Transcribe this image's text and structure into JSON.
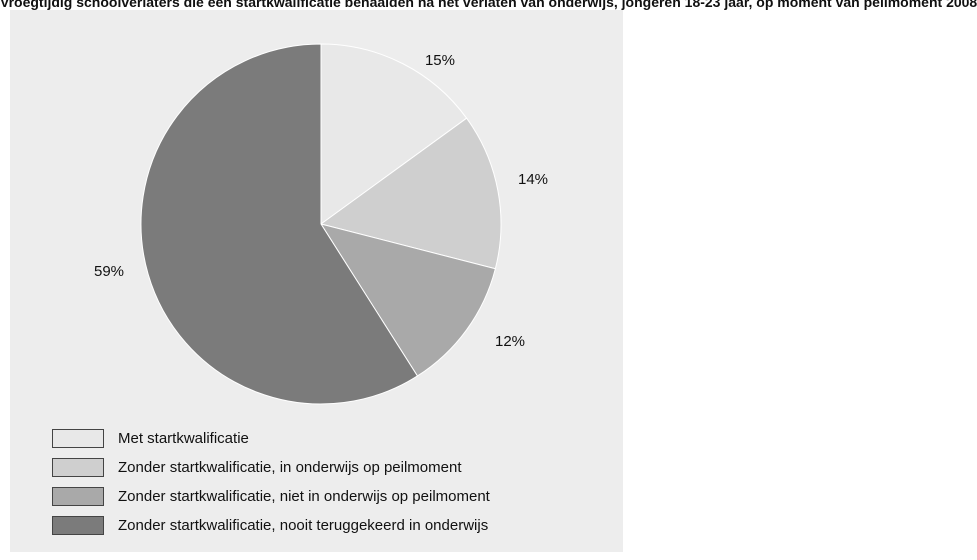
{
  "title": "Vroegtijdig schoolverlaters die een startkwalificatie behaalden na het verlaten van onderwijs, jongeren 18-23 jaar, op moment van peilmoment 2008",
  "chart_data": {
    "type": "pie",
    "slices": [
      {
        "name": "Met startkwalificatie",
        "value": 15,
        "label": "15%",
        "color": "#e8e8e8"
      },
      {
        "name": "Zonder startkwalificatie, in onderwijs op peilmoment",
        "value": 14,
        "label": "14%",
        "color": "#cfcfcf"
      },
      {
        "name": "Zonder startkwalificatie, niet in onderwijs op peilmoment",
        "value": 12,
        "label": "12%",
        "color": "#a9a9a9"
      },
      {
        "name": "Zonder startkwalificatie, nooit teruggekeerd in onderwijs",
        "value": 59,
        "label": "59%",
        "color": "#7b7b7b"
      }
    ],
    "legend_position": "bottom-left",
    "start_angle": "12 o'clock",
    "direction": "clockwise"
  }
}
